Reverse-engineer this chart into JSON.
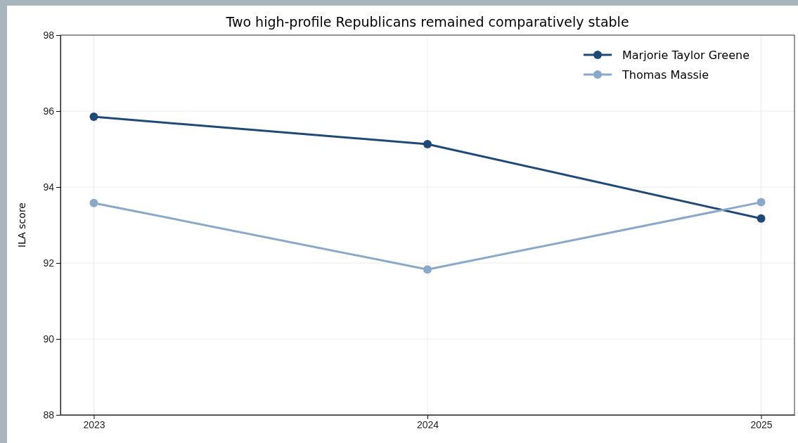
{
  "chart_data": {
    "type": "line",
    "title": "Two high-profile Republicans remained comparatively stable",
    "ylabel": "ILA score",
    "x": [
      2023,
      2024,
      2025
    ],
    "series": [
      {
        "name": "Marjorie Taylor Greene",
        "color": "#1f4a78",
        "values": [
          95.85,
          95.13,
          93.17
        ]
      },
      {
        "name": "Thomas Massie",
        "color": "#8aa8c8",
        "values": [
          93.58,
          91.83,
          93.6
        ]
      }
    ],
    "xlim": [
      2022.9,
      2025.1
    ],
    "xticks": [
      2023,
      2024,
      2025
    ],
    "ylim": [
      88,
      98
    ],
    "yticks": [
      88,
      90,
      92,
      94,
      96,
      98
    ],
    "grid": true,
    "legend": "top right",
    "marker": "circle",
    "line_style": "solid"
  }
}
